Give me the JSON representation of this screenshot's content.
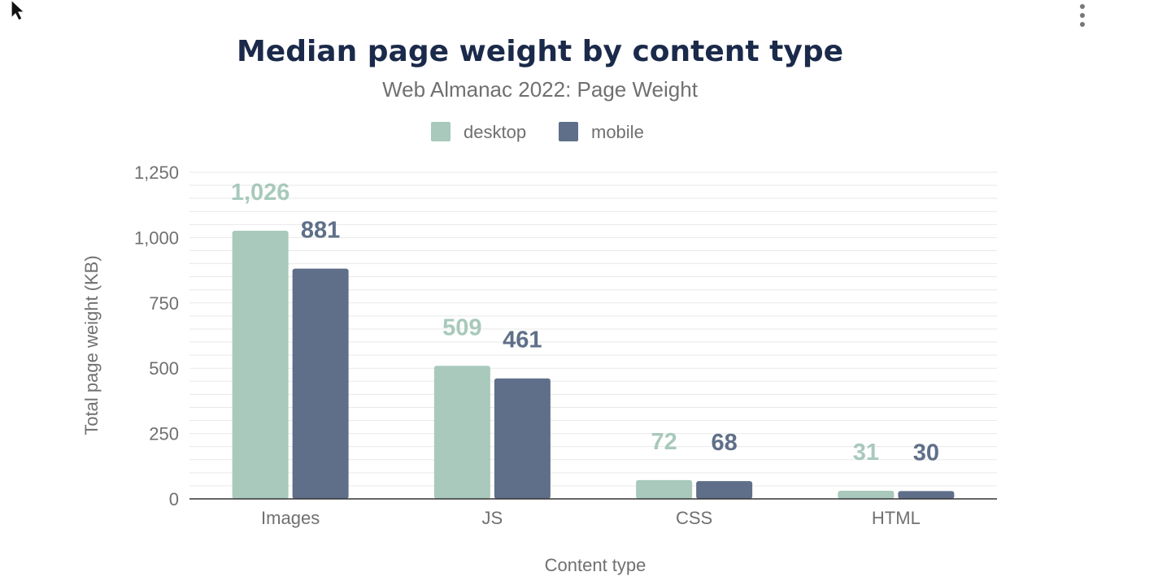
{
  "colors": {
    "desktop": "#a8c9bb",
    "mobile": "#5f6f89",
    "title": "#1b2a4a",
    "text": "#707070",
    "grid": "#e9e9e9",
    "axis": "#333333"
  },
  "menu": {
    "icon": "kebab-menu-icon"
  },
  "chart_data": {
    "type": "bar",
    "title": "Median page weight by content type",
    "subtitle": "Web Almanac 2022: Page Weight",
    "xlabel": "Content type",
    "ylabel": "Total page weight (KB)",
    "categories": [
      "Images",
      "JS",
      "CSS",
      "HTML"
    ],
    "series": [
      {
        "name": "desktop",
        "values": [
          1026,
          509,
          72,
          31
        ]
      },
      {
        "name": "mobile",
        "values": [
          881,
          461,
          68,
          30
        ]
      }
    ],
    "data_labels": [
      [
        "1,026",
        "509",
        "72",
        "31"
      ],
      [
        "881",
        "461",
        "68",
        "30"
      ]
    ],
    "yticks": [
      {
        "value": 0,
        "label": "0"
      },
      {
        "value": 250,
        "label": "250"
      },
      {
        "value": 500,
        "label": "500"
      },
      {
        "value": 750,
        "label": "750"
      },
      {
        "value": 1000,
        "label": "1,000"
      },
      {
        "value": 1250,
        "label": "1,250"
      }
    ],
    "ylim": [
      0,
      1250
    ],
    "grid": true,
    "legend_position": "top-center"
  }
}
